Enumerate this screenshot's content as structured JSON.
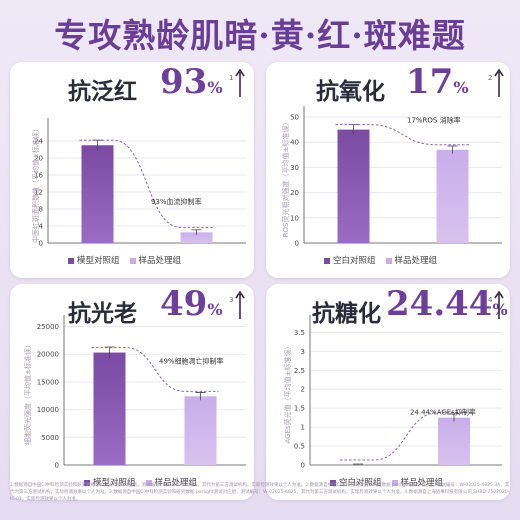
{
  "headline": "专攻熟龄肌暗·黄·红·斑难题",
  "footnote": "1.数据源自中国CI中科检测实验和研究数据 peslight测试对应组，测试编号：W-02025-4825，其代为第三方测试机构，实际检测效果以个人为准。2.数据源自中国CI中科检测实验和研究数据 peslight测试对应组，测试编号：W-02025-4825 3A，其代为第三方测试机构，实际检测效果以个人为准。3.数据源自中国CI中科检测实验和研究数据 peslight测试对应组，测试编号：W-02025-6825，其代为第三方测试机构，实际检测效果以个人为准。4.数据源自上海佰事科技有限公司 SHBD-2502020-IC-01，实际检测效果以个人为准。",
  "colors": {
    "primary": "#7b4aa3",
    "secondary": "#c9aeea",
    "accent": "#6c3f9b"
  },
  "panels": [
    {
      "title": "抗泛红",
      "figure": "93",
      "unit": "%",
      "mark": "1",
      "ylabel": "中医红斑面积数值（平均值±标准误）",
      "legend": [
        "模型对照组",
        "样品处理组"
      ],
      "annotation": "93%血流抑制率"
    },
    {
      "title": "抗氧化",
      "figure": "17",
      "unit": "%",
      "mark": "2",
      "ylabel": "ROS荧光相对强度（平均值±标准误）",
      "legend": [
        "空白对照组",
        "样品处理组"
      ],
      "annotation": "17%ROS 消除率"
    },
    {
      "title": "抗光老",
      "figure": "49",
      "unit": "%",
      "mark": "3",
      "ylabel": "细胞荧光强度（平均值±标准误）",
      "legend": [
        "模型对照组",
        "样品处理组"
      ],
      "annotation": "49%细胞凋亡抑制率"
    },
    {
      "title": "抗糖化",
      "figure": "24.44",
      "unit": "%",
      "mark": "4",
      "ylabel": "AGEs荧光值（平均值±标准误）",
      "legend": [
        "空白对照组",
        "样品处理组"
      ],
      "annotation": "24.44%AGEs抑制率"
    }
  ],
  "chart_data": [
    {
      "type": "bar",
      "categories": [
        "模型对照组",
        "样品处理组"
      ],
      "values": [
        23,
        2.5
      ],
      "errors": [
        1.2,
        0.6
      ],
      "ylim": [
        0,
        28
      ],
      "yticks": [
        0,
        4,
        8,
        12,
        16,
        20,
        24
      ],
      "title": "抗泛红",
      "xlabel": "",
      "ylabel": "中医红斑面积数值（平均值±标准误）",
      "grid": true
    },
    {
      "type": "bar",
      "categories": [
        "空白对照组",
        "样品处理组"
      ],
      "values": [
        45,
        37
      ],
      "errors": [
        2.0,
        1.5
      ],
      "ylim": [
        0,
        52
      ],
      "yticks": [
        0,
        10,
        20,
        30,
        40,
        50
      ],
      "title": "抗氧化",
      "xlabel": "",
      "ylabel": "ROS荧光相对强度（平均值±标准误）",
      "grid": true
    },
    {
      "type": "bar",
      "categories": [
        "模型对照组",
        "样品处理组"
      ],
      "values": [
        20300,
        12400
      ],
      "errors": [
        1000,
        700
      ],
      "ylim": [
        0,
        26000
      ],
      "yticks": [
        0,
        5000,
        10000,
        15000,
        20000,
        25000
      ],
      "title": "抗光老",
      "xlabel": "",
      "ylabel": "细胞荧光强度（平均值±标准误）",
      "grid": true
    },
    {
      "type": "bar",
      "categories": [
        "空白对照组",
        "样品处理组"
      ],
      "values": [
        0,
        1.25
      ],
      "errors": [
        0,
        0.1
      ],
      "ylim": [
        0,
        3.8
      ],
      "yticks": [
        0,
        0.5,
        1,
        1.5,
        2,
        2.5,
        3,
        3.5
      ],
      "title": "抗糖化",
      "xlabel": "",
      "ylabel": "AGEs荧光值（平均值±标准误）",
      "grid": true
    }
  ]
}
